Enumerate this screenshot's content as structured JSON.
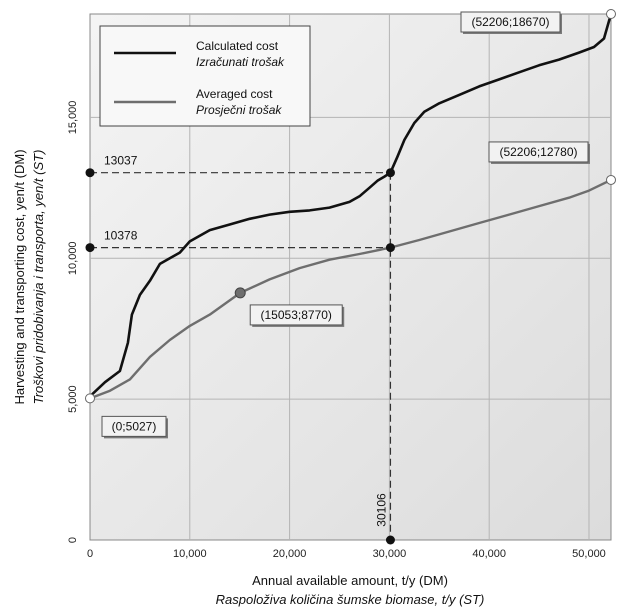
{
  "chart_data": {
    "type": "line",
    "xlabel": "Annual available amount, t/y (DM)",
    "xlabel2": "Raspoloživa količina šumske biomase, t/y (ST)",
    "ylabel": "Harvesting and transporting cost, yen/t (DM)",
    "ylabel2": "Troškovi pridobivanja i transporta, yen/t (ST)",
    "xlim": [
      0,
      52206
    ],
    "ylim": [
      0,
      18670
    ],
    "xticks": [
      0,
      10000,
      20000,
      30000,
      40000,
      50000
    ],
    "xtick_labels": [
      "0",
      "10,000",
      "20,000",
      "30,000",
      "40,000",
      "50,000"
    ],
    "yticks": [
      0,
      5000,
      10000,
      15000
    ],
    "ytick_labels": [
      "0",
      "5,000",
      "10,000",
      "15,000"
    ],
    "grid": true,
    "legend_position": "top-left",
    "series": [
      {
        "name": "Calculated cost",
        "name2": "Izračunati trošak",
        "color": "#111111",
        "x": [
          0,
          1500,
          3000,
          3800,
          4200,
          5000,
          6000,
          7000,
          8000,
          9000,
          10000,
          11000,
          12000,
          14000,
          16000,
          18000,
          20000,
          22000,
          24000,
          26000,
          27000,
          28000,
          28800,
          29500,
          30106,
          30800,
          31500,
          32500,
          33500,
          35000,
          37000,
          39000,
          41000,
          43000,
          45000,
          47000,
          49000,
          50500,
          51500,
          52206
        ],
        "y": [
          5100,
          5600,
          6000,
          7000,
          8000,
          8700,
          9200,
          9800,
          10000,
          10200,
          10600,
          10800,
          11000,
          11200,
          11400,
          11550,
          11650,
          11700,
          11800,
          12000,
          12200,
          12500,
          12750,
          12900,
          13037,
          13600,
          14200,
          14800,
          15200,
          15500,
          15800,
          16100,
          16350,
          16600,
          16850,
          17050,
          17300,
          17500,
          17800,
          18670
        ]
      },
      {
        "name": "Averaged cost",
        "name2": "Prosječni trošak",
        "color": "#6e6e6e",
        "x": [
          0,
          2000,
          4000,
          6000,
          8000,
          10000,
          12000,
          15053,
          18000,
          21000,
          24000,
          27000,
          30106,
          33000,
          36000,
          39000,
          42000,
          45000,
          48000,
          50000,
          52206
        ],
        "y": [
          5027,
          5300,
          5700,
          6500,
          7100,
          7600,
          8000,
          8770,
          9250,
          9650,
          9950,
          10150,
          10378,
          10650,
          10950,
          11250,
          11550,
          11850,
          12150,
          12400,
          12780
        ]
      }
    ],
    "reference": {
      "x": 30106,
      "x_label": "30106",
      "y_calculated": 13037,
      "y_calculated_label": "13037",
      "y_averaged": 10378,
      "y_averaged_label": "10378"
    },
    "annotations": [
      {
        "text": "(0;5027)",
        "x": 0,
        "y": 5027
      },
      {
        "text": "(15053;8770)",
        "x": 15053,
        "y": 8770
      },
      {
        "text": "(52206;12780)",
        "x": 52206,
        "y": 12780
      },
      {
        "text": "(52206;18670)",
        "x": 52206,
        "y": 18670
      }
    ]
  }
}
